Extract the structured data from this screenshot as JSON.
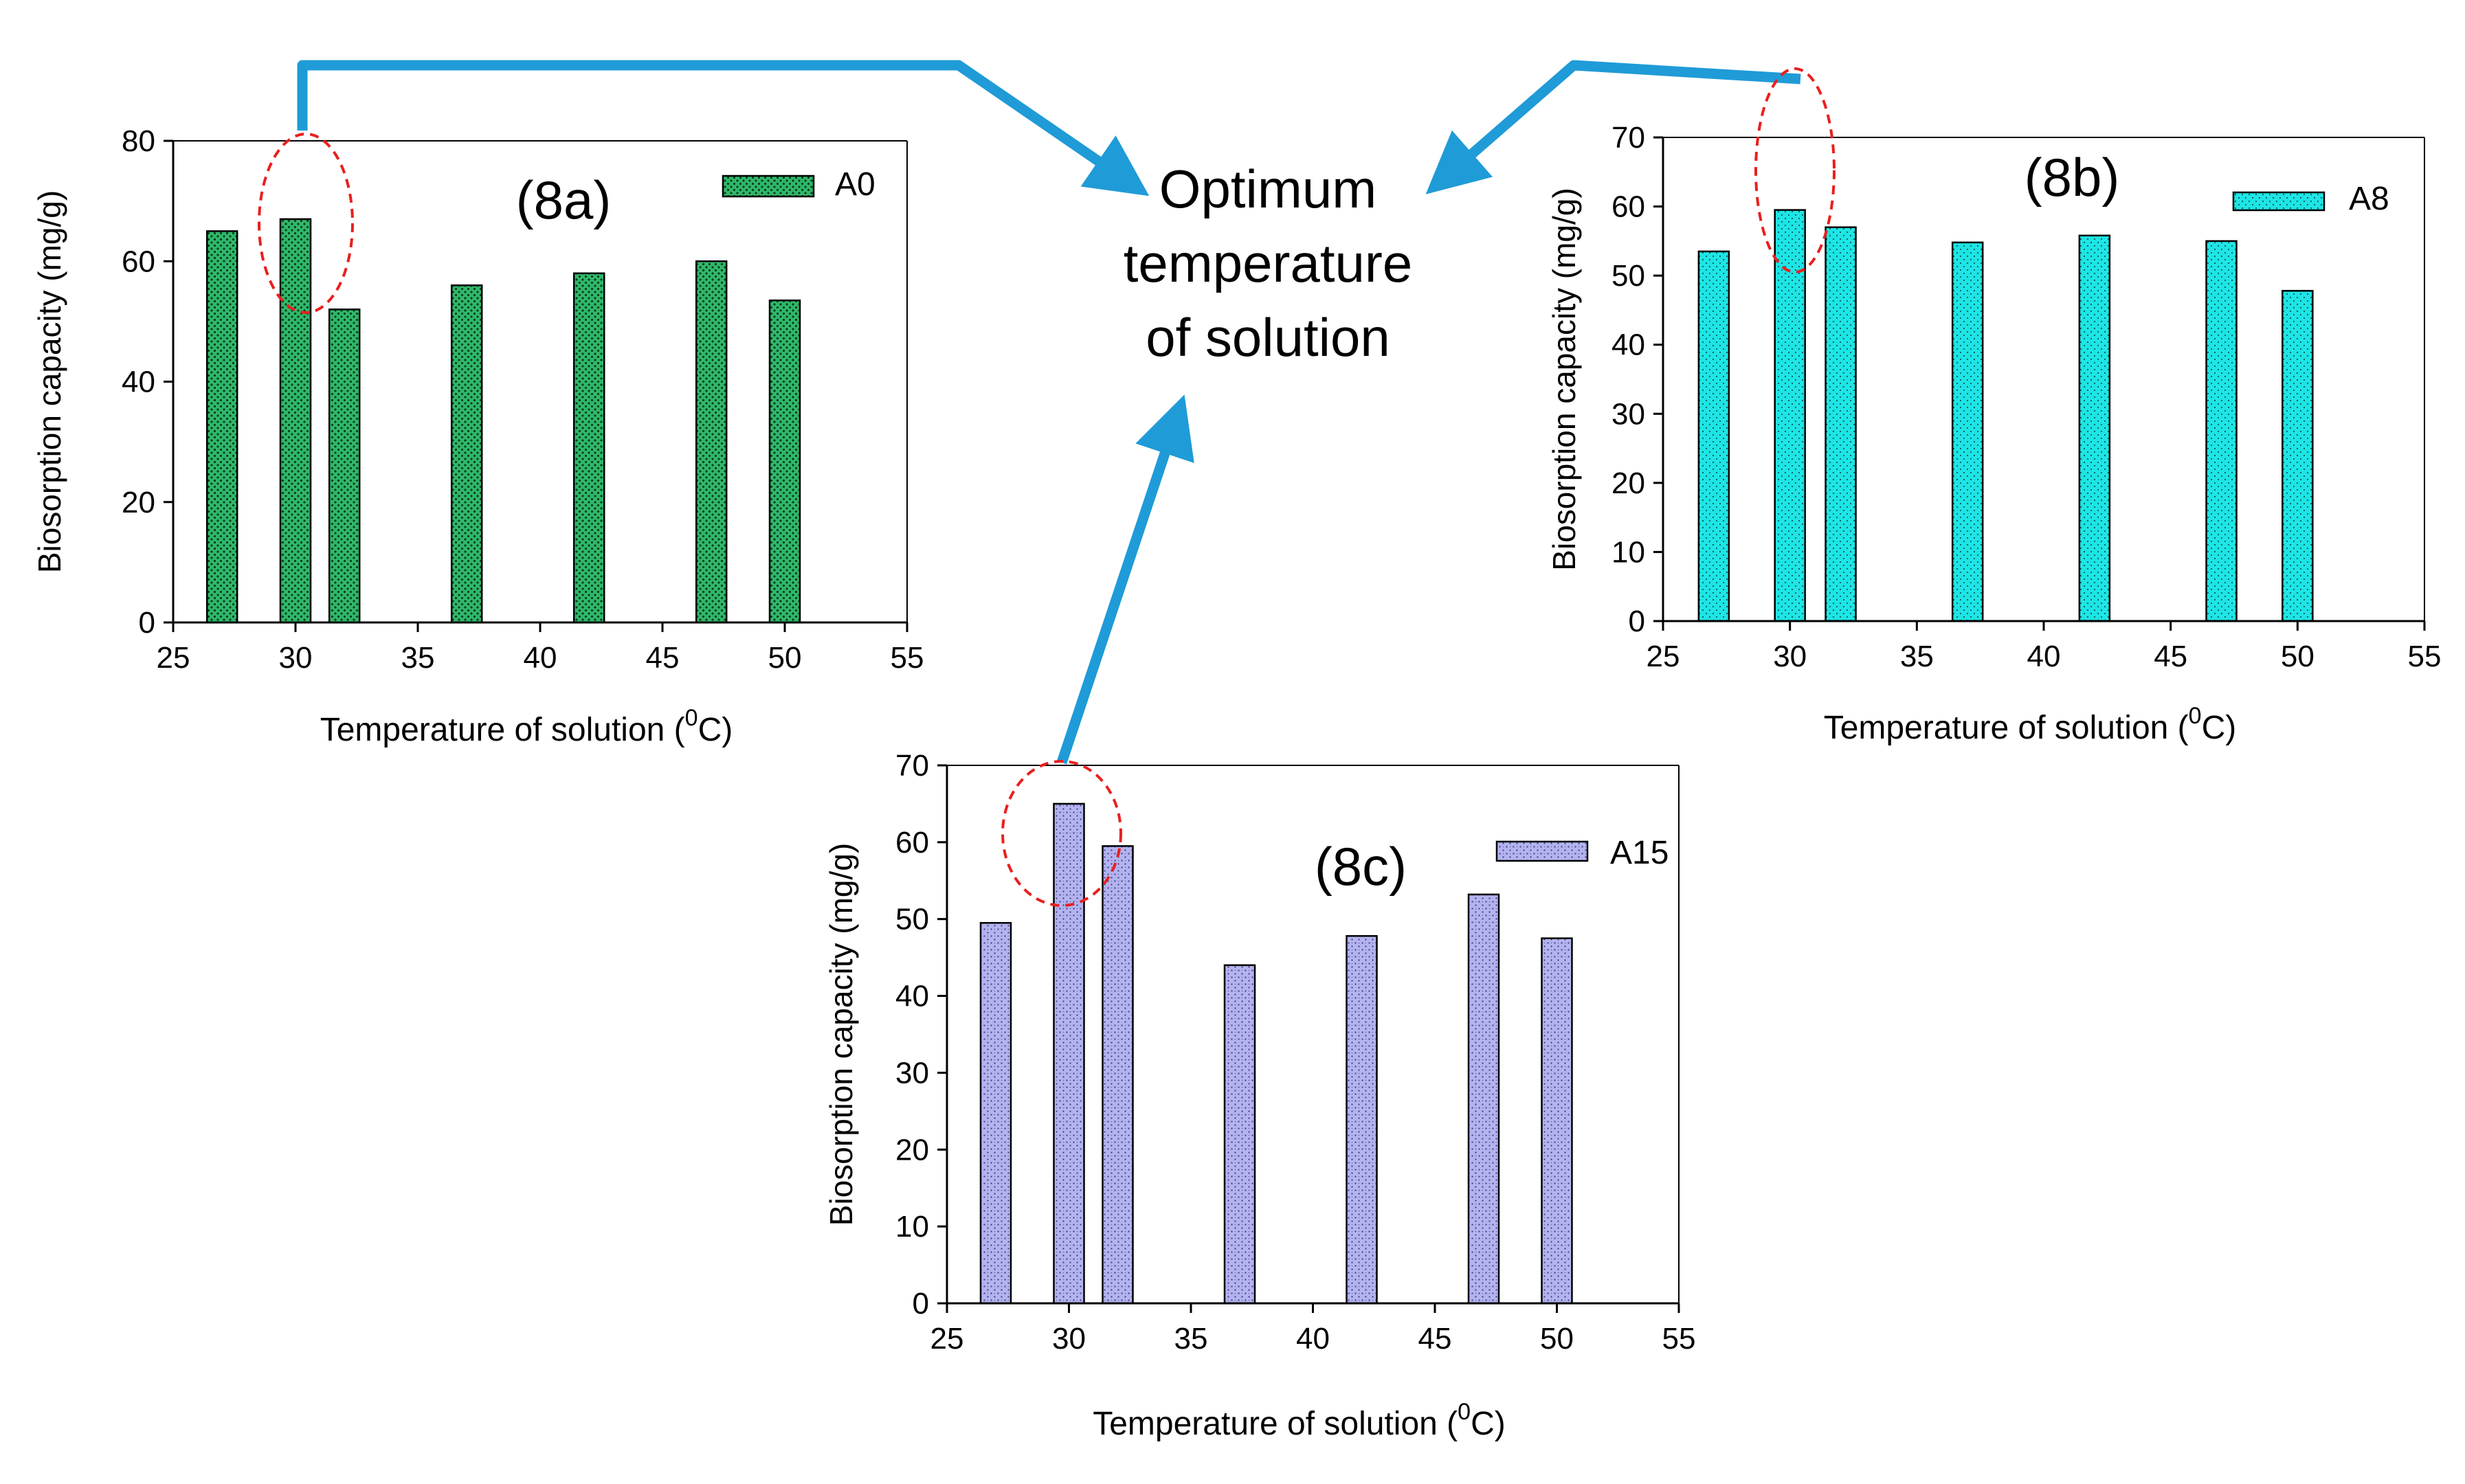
{
  "center_text": [
    "Optimum",
    "temperature",
    "of solution"
  ],
  "colors": {
    "arrow": "#1f9bd7",
    "circle": "#e8201e",
    "a0_fill": "#2fb86a",
    "a8_fill": "#1ee5e5",
    "a15_fill": "#b3b3f0"
  },
  "chart_data": [
    {
      "type": "bar",
      "panel": "(8a)",
      "title": "",
      "xlabel": "Temperature of solution (",
      "xlabel_sup": "0",
      "xlabel_end": "C)",
      "ylabel": "Biosorption capacity (mg/g)",
      "xlim": [
        25,
        55
      ],
      "ylim": [
        0,
        80
      ],
      "xticks": [
        25,
        30,
        35,
        40,
        45,
        50,
        55
      ],
      "yticks": [
        0,
        20,
        40,
        60,
        80
      ],
      "series": [
        {
          "name": "A0",
          "x": [
            27,
            30,
            32,
            37,
            42,
            47,
            50
          ],
          "values": [
            65,
            67,
            52,
            56,
            58,
            60,
            53.5
          ]
        }
      ],
      "legend": "top-right",
      "grid": false,
      "highlight_x": 30
    },
    {
      "type": "bar",
      "panel": "(8b)",
      "title": "",
      "xlabel": "Temperature of solution (",
      "xlabel_sup": "0",
      "xlabel_end": "C)",
      "ylabel": "Biosorption capacity (mg/g)",
      "xlim": [
        25,
        55
      ],
      "ylim": [
        0,
        70
      ],
      "xticks": [
        25,
        30,
        35,
        40,
        45,
        50,
        55
      ],
      "yticks": [
        0,
        10,
        20,
        30,
        40,
        50,
        60,
        70
      ],
      "series": [
        {
          "name": "A8",
          "x": [
            27,
            30,
            32,
            37,
            42,
            47,
            50
          ],
          "values": [
            53.5,
            59.5,
            57,
            54.8,
            55.8,
            55,
            47.8
          ]
        }
      ],
      "legend": "top-right",
      "grid": false,
      "highlight_x": 30
    },
    {
      "type": "bar",
      "panel": "(8c)",
      "title": "",
      "xlabel": "Temperature of solution (",
      "xlabel_sup": "0",
      "xlabel_end": "C)",
      "ylabel": "Biosorption capacity (mg/g)",
      "xlim": [
        25,
        55
      ],
      "ylim": [
        0,
        70
      ],
      "xticks": [
        25,
        30,
        35,
        40,
        45,
        50,
        55
      ],
      "yticks": [
        0,
        10,
        20,
        30,
        40,
        50,
        60,
        70
      ],
      "series": [
        {
          "name": "A15",
          "x": [
            27,
            30,
            32,
            37,
            42,
            47,
            50
          ],
          "values": [
            49.5,
            65,
            59.5,
            44,
            47.8,
            53.2,
            47.5
          ]
        }
      ],
      "legend": "top-right",
      "grid": false,
      "highlight_x": 30
    }
  ]
}
